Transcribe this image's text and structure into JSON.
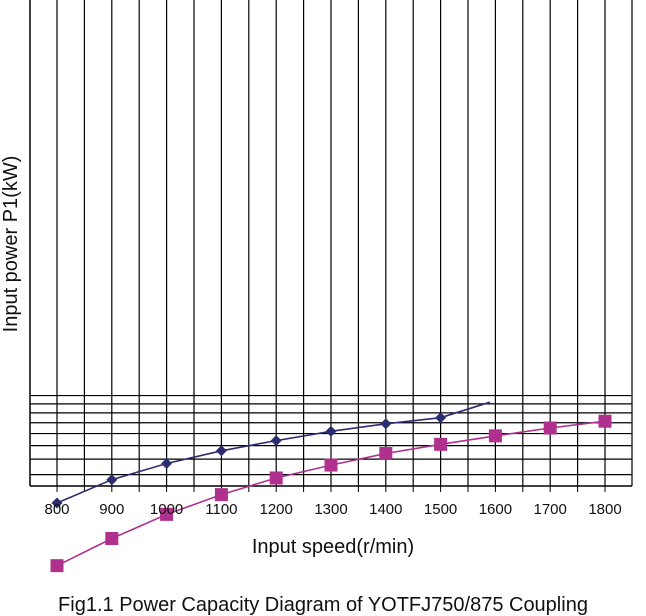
{
  "chart_data": {
    "type": "line",
    "title": "",
    "xlabel": "Input speed(r/min)",
    "ylabel": "Input power P1(kW)",
    "caption": "Fig1.1 Power Capacity Diagram of YOTFJ750/875 Coupling",
    "x": [
      800,
      900,
      1000,
      1100,
      1200,
      1300,
      1400,
      1500,
      1600,
      1700,
      1800
    ],
    "xlim": [
      750,
      1850
    ],
    "ylim": [
      0,
      13
    ],
    "y_scale": "log",
    "y_tick_labels_shown": false,
    "grid": true,
    "legend": "none",
    "series": [
      {
        "marker": "diamond",
        "color": "#2b2d6e",
        "values": [
          4.5,
          5.7,
          6.7,
          7.6,
          8.4,
          9.2,
          9.9,
          10.5,
          null,
          null,
          null
        ],
        "extend_line_to": [
          1590,
          12.2
        ]
      },
      {
        "marker": "square",
        "color": "#b0308e",
        "values": [
          2.3,
          3.1,
          4.0,
          4.9,
          5.8,
          6.6,
          7.4,
          8.1,
          8.8,
          9.5,
          10.15
        ]
      }
    ]
  }
}
